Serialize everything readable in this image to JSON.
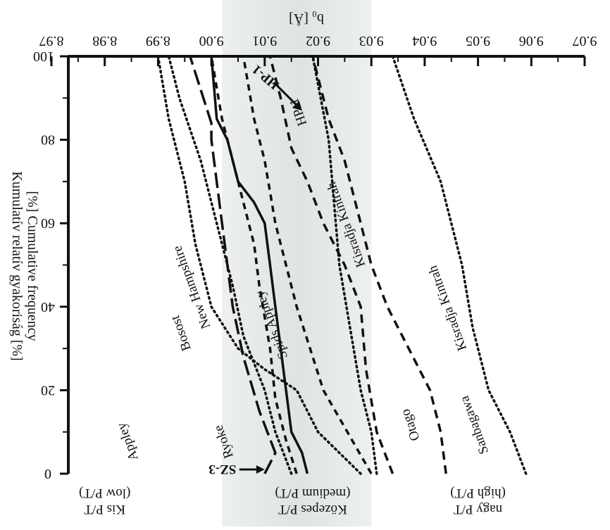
{
  "chart_data": {
    "type": "line",
    "orientation": "rotated-180",
    "x_axis": {
      "title": "b₀ [Å]",
      "ticks": [
        8.97,
        8.98,
        8.99,
        9.0,
        9.01,
        9.02,
        9.03,
        9.04,
        9.05,
        9.06,
        9.07
      ],
      "tick_labels": [
        "8.97",
        "8.98",
        "8.99",
        "9.00",
        "9.01",
        "9.02",
        "9.03",
        "9.04",
        "9.05",
        "9.06",
        "9.07"
      ],
      "range": [
        8.97,
        9.07
      ]
    },
    "y_axis": {
      "title_line1": "Kumulatív relatív gyakoriság [%]",
      "title_line2": "[%] Cumulative frequency",
      "ticks": [
        0,
        20,
        40,
        60,
        80,
        100
      ],
      "tick_labels": [
        "0",
        "20",
        "40",
        "60",
        "80",
        "100"
      ],
      "range": [
        0,
        100
      ]
    },
    "shaded_band": {
      "x_range": [
        9.002,
        9.03
      ],
      "color": "#dfe3e3"
    },
    "regions": [
      {
        "name": "low",
        "line1": "Kis P/T",
        "line2": "(low P/T)",
        "x_center": 8.98
      },
      {
        "name": "medium",
        "line1": "Közepes P/T",
        "line2": "(medium P/T)",
        "x_center": 9.019
      },
      {
        "name": "high",
        "line1": "nagy P/T",
        "line2": "(high P/T)",
        "x_center": 9.05
      }
    ],
    "series": [
      {
        "name": "Bosost",
        "style": "dotted",
        "label_pos": [
          8.995,
          34
        ],
        "points": [
          [
            9.028,
            0
          ],
          [
            9.02,
            10
          ],
          [
            9.016,
            20
          ],
          [
            9.01,
            25
          ],
          [
            9.005,
            30
          ],
          [
            9.003,
            34
          ],
          [
            9.0,
            40
          ],
          [
            8.997,
            55
          ],
          [
            8.995,
            70
          ],
          [
            8.992,
            85
          ],
          [
            8.99,
            100
          ]
        ]
      },
      {
        "name": "Ryoke",
        "style": "dotted",
        "label_pos": [
          9.003,
          8
        ],
        "points": [
          [
            9.015,
            0
          ],
          [
            9.012,
            10
          ],
          [
            9.01,
            20
          ],
          [
            9.006,
            33
          ],
          [
            9.004,
            45
          ],
          [
            9.001,
            60
          ],
          [
            8.998,
            75
          ],
          [
            8.994,
            90
          ],
          [
            8.992,
            100
          ]
        ]
      },
      {
        "name": "Otago",
        "style": "dotted",
        "label_pos": [
          9.038,
          12
        ],
        "points": [
          [
            9.031,
            0
          ],
          [
            9.03,
            10
          ],
          [
            9.028,
            20
          ],
          [
            9.026,
            35
          ],
          [
            9.024,
            50
          ],
          [
            9.023,
            65
          ],
          [
            9.022,
            80
          ],
          [
            9.019,
            100
          ]
        ]
      },
      {
        "name": "Sanbagawa",
        "style": "dotted",
        "label_pos": [
          9.05,
          12
        ],
        "points": [
          [
            9.059,
            0
          ],
          [
            9.056,
            10
          ],
          [
            9.052,
            20
          ],
          [
            9.049,
            35
          ],
          [
            9.047,
            50
          ],
          [
            9.043,
            70
          ],
          [
            9.038,
            85
          ],
          [
            9.034,
            100
          ]
        ]
      },
      {
        "name": "Appley",
        "style": "short-dashed",
        "label_pos": [
          8.985,
          8
        ],
        "points": [
          [
            9.03,
            0
          ],
          [
            9.021,
            20
          ],
          [
            9.016,
            40
          ],
          [
            9.014,
            50
          ],
          [
            9.012,
            60
          ],
          [
            9.01,
            75
          ],
          [
            9.008,
            85
          ],
          [
            9.006,
            100
          ]
        ]
      },
      {
        "name": "Spids Appley",
        "style": "short-dashed",
        "label_pos": [
          9.012,
          36
        ],
        "points": [
          [
            9.016,
            0
          ],
          [
            9.014,
            8
          ],
          [
            9.012,
            18
          ],
          [
            9.011,
            30
          ],
          [
            9.009,
            45
          ],
          [
            9.008,
            55
          ],
          [
            9.005,
            70
          ],
          [
            9.002,
            85
          ],
          [
            9.0,
            100
          ]
        ]
      },
      {
        "name": "Kisradja Kintrah",
        "style": "dashed",
        "label_pos": [
          9.045,
          40
        ],
        "points": [
          [
            9.044,
            0
          ],
          [
            9.043,
            10
          ],
          [
            9.041,
            20
          ],
          [
            9.037,
            30
          ],
          [
            9.033,
            40
          ],
          [
            9.03,
            50
          ],
          [
            9.028,
            60
          ],
          [
            9.025,
            75
          ],
          [
            9.022,
            85
          ],
          [
            9.019,
            100
          ]
        ]
      },
      {
        "name": "Kisradja Kintrah",
        "style": "dashed",
        "label_pos": [
          9.026,
          60
        ],
        "points": [
          [
            9.034,
            0
          ],
          [
            9.031,
            10
          ],
          [
            9.029,
            25
          ],
          [
            9.028,
            40
          ],
          [
            9.025,
            50
          ],
          [
            9.021,
            60
          ],
          [
            9.018,
            70
          ],
          [
            9.015,
            78
          ],
          [
            9.013,
            90
          ],
          [
            9.011,
            100
          ]
        ]
      },
      {
        "name": "New Hampshire",
        "style": "long-dashed",
        "label_pos": [
          8.997,
          45
        ],
        "points": [
          [
            9.01,
            0
          ],
          [
            9.012,
            5
          ],
          [
            9.009,
            15
          ],
          [
            9.006,
            28
          ],
          [
            9.004,
            40
          ],
          [
            9.003,
            50
          ],
          [
            9.002,
            60
          ],
          [
            9.0,
            80
          ],
          [
            9.0,
            84
          ],
          [
            8.996,
            100
          ]
        ]
      },
      {
        "name": "HP-1",
        "style": "solid",
        "label_pos": [
          9.017,
          87
        ],
        "points": [
          [
            9.018,
            0
          ],
          [
            9.017,
            5
          ],
          [
            9.015,
            10
          ],
          [
            9.014,
            20
          ],
          [
            9.013,
            30
          ],
          [
            9.012,
            40
          ],
          [
            9.011,
            50
          ],
          [
            9.01,
            60
          ],
          [
            9.008,
            65
          ],
          [
            9.005,
            70
          ],
          [
            9.003,
            80
          ],
          [
            9.001,
            85
          ],
          [
            9.0,
            100
          ]
        ]
      }
    ],
    "annotations": [
      {
        "label": "HP-1",
        "arrow_to": [
          9.017,
          87
        ]
      },
      {
        "label": "SZ-3",
        "arrow_to": [
          9.01,
          0
        ]
      }
    ]
  }
}
